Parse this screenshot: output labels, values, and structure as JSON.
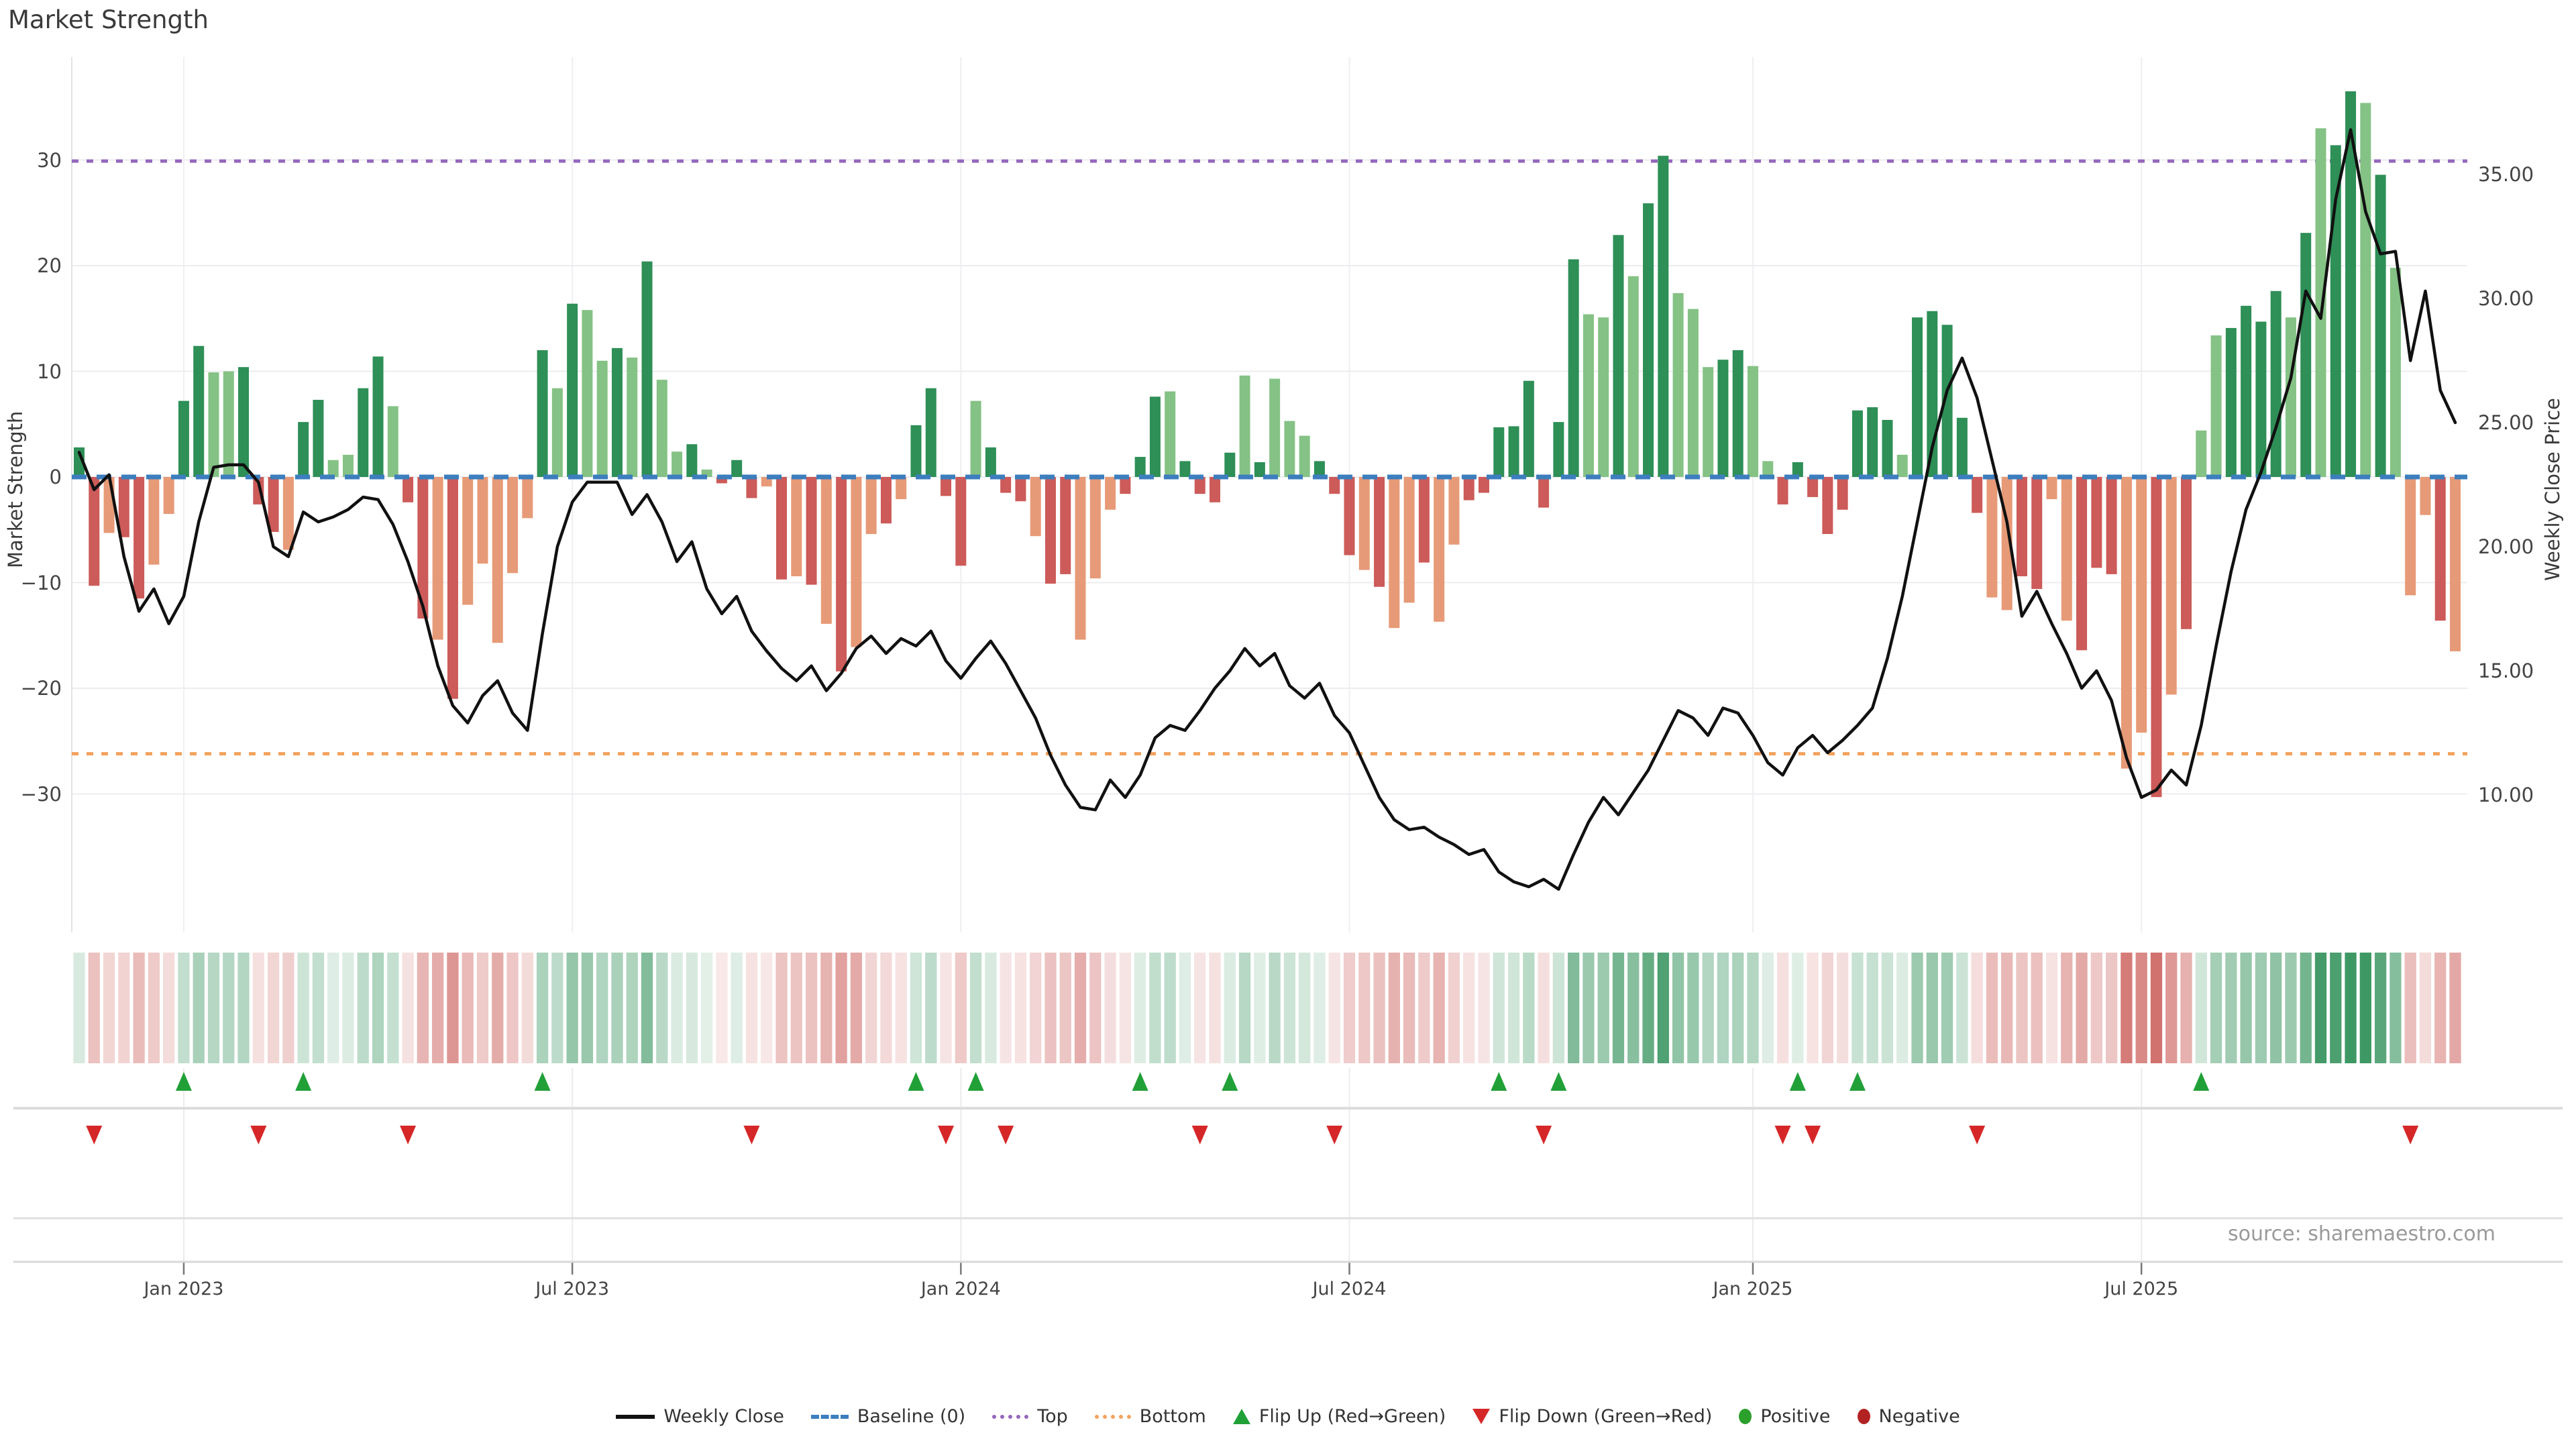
{
  "title": "Market Strength",
  "source": "source: sharemaestro.com",
  "left_axis": {
    "title": "Market Strength"
  },
  "right_axis": {
    "title": "Weekly Close Price"
  },
  "legend": [
    {
      "label": "Weekly Close",
      "glyph": "line"
    },
    {
      "label": "Baseline (0)",
      "glyph": "dash"
    },
    {
      "label": "Top",
      "glyph": "dot-purple"
    },
    {
      "label": "Bottom",
      "glyph": "dot-orange"
    },
    {
      "label": "Flip Up (Red→Green)",
      "glyph": "tri-up"
    },
    {
      "label": "Flip Down (Green→Red)",
      "glyph": "tri-down"
    },
    {
      "label": "Positive",
      "glyph": "dot-pos"
    },
    {
      "label": "Negative",
      "glyph": "dot-neg"
    }
  ],
  "chart_data": {
    "type": "bar+line",
    "title": "Market Strength",
    "ylabel_left": "Market Strength",
    "ylabel_right": "Weekly Close Price",
    "y_left_ticks": [
      "30",
      "20",
      "10",
      "0",
      "−10",
      "−20",
      "−30"
    ],
    "y_left_values": [
      30,
      20,
      10,
      0,
      -10,
      -20,
      -30
    ],
    "y_right_ticks": [
      "35.00",
      "30.00",
      "25.00",
      "20.00",
      "15.00",
      "10.00"
    ],
    "y_right_values": [
      35,
      30,
      25,
      20,
      15,
      10
    ],
    "x_ticks": [
      {
        "label": "Jan 2023",
        "week": 7
      },
      {
        "label": "Jul 2023",
        "week": 33
      },
      {
        "label": "Jan 2024",
        "week": 59
      },
      {
        "label": "Jul 2024",
        "week": 85
      },
      {
        "label": "Jan 2025",
        "week": 112
      },
      {
        "label": "Jul 2025",
        "week": 138
      }
    ],
    "baseline": 0,
    "top_line": 29.9,
    "bottom_line": -26.2,
    "flip_threshold": 1.4,
    "series": [
      {
        "name": "Market Strength (weekly bars)",
        "values": [
          2.8,
          -10.3,
          -5.3,
          -5.7,
          -11.5,
          -8.3,
          -3.5,
          7.2,
          12.4,
          9.9,
          10.0,
          10.4,
          -2.6,
          -5.2,
          -6.9,
          5.2,
          7.3,
          1.6,
          2.1,
          8.4,
          11.4,
          6.7,
          -2.4,
          -13.4,
          -15.4,
          -21.0,
          -12.1,
          -8.2,
          -15.7,
          -9.1,
          -3.9,
          12.0,
          8.4,
          16.4,
          15.8,
          11.0,
          12.2,
          11.3,
          20.4,
          9.2,
          2.4,
          3.1,
          0.7,
          -0.6,
          1.6,
          -2.0,
          -0.9,
          -9.7,
          -9.4,
          -10.2,
          -13.9,
          -18.4,
          -16.1,
          -5.4,
          -4.4,
          -2.1,
          4.9,
          8.4,
          -1.8,
          -8.4,
          7.2,
          2.8,
          -1.5,
          -2.3,
          -5.6,
          -10.1,
          -9.2,
          -15.4,
          -9.6,
          -3.1,
          -1.6,
          1.9,
          7.6,
          8.1,
          1.5,
          -1.6,
          -2.4,
          2.3,
          9.6,
          1.4,
          9.3,
          5.3,
          3.9,
          1.5,
          -1.6,
          -7.4,
          -8.8,
          -10.4,
          -14.3,
          -11.9,
          -8.1,
          -13.7,
          -6.4,
          -2.2,
          -1.5,
          4.7,
          4.8,
          9.1,
          -2.9,
          5.2,
          20.6,
          15.4,
          15.1,
          22.9,
          19.0,
          25.9,
          30.4,
          17.4,
          15.9,
          10.4,
          11.1,
          12.0,
          10.5,
          1.5,
          -2.6,
          1.4,
          -1.9,
          -5.4,
          -3.1,
          6.3,
          6.6,
          5.4,
          2.1,
          15.1,
          15.7,
          14.4,
          5.6,
          -3.4,
          -11.4,
          -12.6,
          -9.4,
          -10.6,
          -2.1,
          -13.6,
          -16.4,
          -8.6,
          -9.2,
          -27.6,
          -24.2,
          -30.3,
          -20.6,
          -14.4,
          4.4,
          13.4,
          14.1,
          16.2,
          14.7,
          17.6,
          15.1,
          23.1,
          33.0,
          31.4,
          36.5,
          35.4,
          28.6,
          19.8,
          -11.2,
          -3.6,
          -13.6,
          -16.5
        ]
      },
      {
        "name": "Weekly Close (line)",
        "values": [
          23.8,
          22.3,
          22.9,
          19.6,
          17.4,
          18.3,
          16.9,
          18.0,
          21.0,
          23.2,
          23.3,
          23.3,
          22.6,
          20.0,
          19.6,
          21.4,
          21.0,
          21.2,
          21.5,
          22.0,
          21.9,
          20.9,
          19.4,
          17.6,
          15.2,
          13.6,
          12.9,
          14.0,
          14.6,
          13.3,
          12.6,
          16.5,
          20.0,
          21.8,
          22.6,
          22.6,
          22.6,
          21.3,
          22.1,
          21.0,
          19.4,
          20.2,
          18.3,
          17.3,
          18.0,
          16.6,
          15.8,
          15.1,
          14.6,
          15.2,
          14.2,
          14.9,
          15.9,
          16.4,
          15.7,
          16.3,
          16.0,
          16.6,
          15.4,
          14.7,
          15.5,
          16.2,
          15.3,
          14.2,
          13.1,
          11.6,
          10.4,
          9.5,
          9.4,
          10.6,
          9.9,
          10.8,
          12.3,
          12.8,
          12.6,
          13.4,
          14.3,
          15.0,
          15.9,
          15.2,
          15.7,
          14.4,
          13.9,
          14.5,
          13.2,
          12.5,
          11.2,
          9.9,
          9.0,
          8.6,
          8.7,
          8.3,
          8.0,
          7.6,
          7.8,
          6.9,
          6.5,
          6.3,
          6.6,
          6.2,
          7.6,
          8.9,
          9.9,
          9.2,
          10.1,
          11.0,
          12.2,
          13.4,
          13.1,
          12.4,
          13.5,
          13.3,
          12.4,
          11.3,
          10.8,
          11.9,
          12.4,
          11.7,
          12.2,
          12.8,
          13.5,
          15.5,
          18.0,
          21.0,
          24.0,
          26.3,
          27.6,
          26.0,
          23.5,
          21.0,
          17.2,
          18.2,
          16.9,
          15.7,
          14.3,
          15.0,
          13.8,
          11.5,
          9.9,
          10.2,
          11.0,
          10.4,
          12.8,
          16.0,
          19.0,
          21.5,
          23.0,
          24.8,
          26.8,
          30.3,
          29.2,
          34.0,
          36.8,
          33.5,
          31.8,
          31.9,
          27.5,
          30.3,
          26.3,
          25.0
        ]
      }
    ],
    "bar_shades": "ddlddllddlldddlddllddlddldllllldldlldldlldldddldldldlldlddddldddlddllldddlddddldllldddldlldllddddddddlldlddlllddllddddddddldddddllddlldddlldldllddddldlddldllldldd",
    "colors": {
      "bar_pos_dark": "#2E8F57",
      "bar_pos_light": "#85C285",
      "bar_neg_dark": "#CC5B59",
      "bar_neg_light": "#E79A77",
      "line": "#111111",
      "baseline": "#3C7EBE",
      "top": "#9467BD",
      "bottom": "#F2A35E",
      "flip_up": "#21A038",
      "flip_down": "#D62728",
      "positive_dot": "#2CA02C",
      "negative_dot": "#B22222",
      "grid": "#ECECF0"
    }
  }
}
